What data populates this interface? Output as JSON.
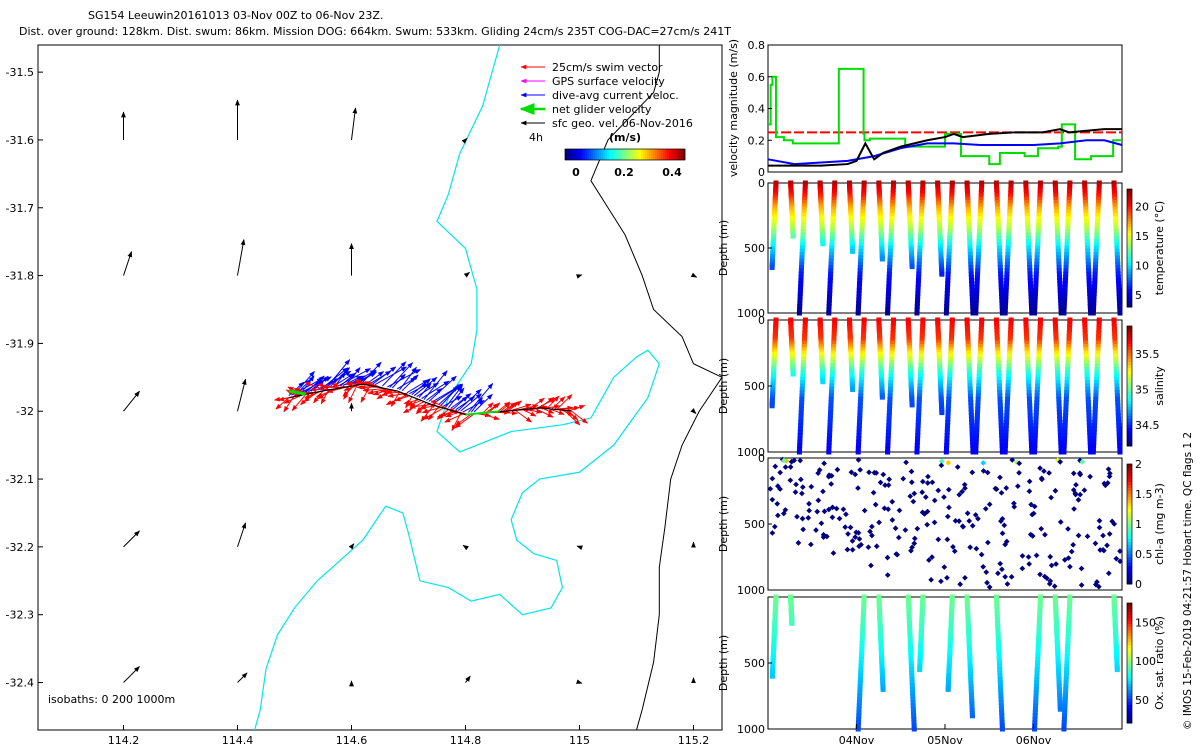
{
  "header": {
    "line1": "SG154 Leeuwin20161013 03-Nov 00Z to 06-Nov 23Z.",
    "line2": "Dist. over ground: 128km. Dist. swum: 86km. Mission DOG: 664km. Swum: 533km. Gliding 24cm/s 235T COG-DAC=27cm/s 241T"
  },
  "side_note": "© IMOS 15-Feb-2019 04:21:57 Hobart time. QC flags 1  2",
  "colors": {
    "swim": "#ff0000",
    "gps": "#ff00ff",
    "dac": "#0000ff",
    "net": "#00dd00",
    "geo": "#000000",
    "isobath0": "#000000",
    "isobath200": "#00e5ee",
    "isobath1000": "#000000"
  },
  "chart_data": [
    {
      "type": "map",
      "xlim": [
        114.05,
        115.25
      ],
      "ylim": [
        -32.47,
        -31.46
      ],
      "x_ticks": [
        114.2,
        114.4,
        114.6,
        114.8,
        115,
        115.2
      ],
      "x_tick_labels": [
        "114.2",
        "114.4",
        "114.6",
        "114.8",
        "115",
        "115.2"
      ],
      "y_ticks": [
        -31.5,
        -31.6,
        -31.7,
        -31.8,
        -31.9,
        -32,
        -32.1,
        -32.2,
        -32.3,
        -32.4
      ],
      "y_tick_labels": [
        "-31.5",
        "-31.6",
        "-31.7",
        "-31.8",
        "-31.9",
        "-32",
        "-32.1",
        "-32.2",
        "-32.3",
        "-32.4"
      ],
      "legend": {
        "position": "top-right",
        "items": [
          {
            "label": "25cm/s swim vector",
            "color": "#ff0000"
          },
          {
            "label": "GPS surface velocity",
            "color": "#ff00ff"
          },
          {
            "label": "dive-avg current veloc.",
            "color": "#0000ff"
          },
          {
            "label": "net glider velocity",
            "color": "#00dd00"
          },
          {
            "label": "sfc geo. vel. 06-Nov-2016",
            "color": "#000000"
          }
        ],
        "extra_label": "4h"
      },
      "colorbar": {
        "title": "(m/s)",
        "range": [
          0,
          0.5
        ],
        "ticks": [
          0,
          0.2,
          0.4
        ],
        "tick_labels": [
          "0",
          "0.2",
          "0.4"
        ]
      },
      "isobaths_label": "isobaths: 0   200  1000m",
      "track": [
        [
          114.49,
          -31.98
        ],
        [
          114.55,
          -31.97
        ],
        [
          114.62,
          -31.96
        ],
        [
          114.68,
          -31.97
        ],
        [
          114.74,
          -31.99
        ],
        [
          114.8,
          -32.005
        ],
        [
          114.87,
          -32.0
        ],
        [
          114.93,
          -31.995
        ],
        [
          114.99,
          -32.0
        ]
      ],
      "geo_vectors": [
        {
          "lon": 114.2,
          "lat": -31.6,
          "u": 0.0,
          "v": 0.35
        },
        {
          "lon": 114.4,
          "lat": -31.6,
          "u": 0.0,
          "v": 0.5
        },
        {
          "lon": 114.6,
          "lat": -31.6,
          "u": 0.05,
          "v": 0.4
        },
        {
          "lon": 114.8,
          "lat": -31.6,
          "u": 0.02,
          "v": 0.02
        },
        {
          "lon": 114.2,
          "lat": -31.8,
          "u": 0.1,
          "v": 0.3
        },
        {
          "lon": 114.4,
          "lat": -31.8,
          "u": 0.08,
          "v": 0.45
        },
        {
          "lon": 114.6,
          "lat": -31.8,
          "u": 0.0,
          "v": 0.4
        },
        {
          "lon": 114.8,
          "lat": -31.8,
          "u": 0.05,
          "v": 0.04
        },
        {
          "lon": 115.0,
          "lat": -31.8,
          "u": 0.03,
          "v": 0.01
        },
        {
          "lon": 115.2,
          "lat": -31.8,
          "u": 0.04,
          "v": -0.02
        },
        {
          "lon": 114.2,
          "lat": -32.0,
          "u": 0.2,
          "v": 0.25
        },
        {
          "lon": 114.4,
          "lat": -32.0,
          "u": 0.1,
          "v": 0.4
        },
        {
          "lon": 114.6,
          "lat": -32.0,
          "u": 0.0,
          "v": 0.1
        },
        {
          "lon": 115.2,
          "lat": -32.0,
          "u": 0.03,
          "v": -0.03
        },
        {
          "lon": 114.2,
          "lat": -32.2,
          "u": 0.2,
          "v": 0.2
        },
        {
          "lon": 114.4,
          "lat": -32.2,
          "u": 0.1,
          "v": 0.3
        },
        {
          "lon": 114.6,
          "lat": -32.2,
          "u": 0.03,
          "v": 0.04
        },
        {
          "lon": 114.8,
          "lat": -32.2,
          "u": -0.03,
          "v": 0.02
        },
        {
          "lon": 115.0,
          "lat": -32.2,
          "u": -0.03,
          "v": 0.01
        },
        {
          "lon": 115.2,
          "lat": -32.2,
          "u": 0.0,
          "v": 0.06
        },
        {
          "lon": 114.2,
          "lat": -32.4,
          "u": 0.2,
          "v": 0.2
        },
        {
          "lon": 114.4,
          "lat": -32.4,
          "u": 0.12,
          "v": 0.12
        },
        {
          "lon": 114.6,
          "lat": -32.4,
          "u": 0.0,
          "v": 0.02
        },
        {
          "lon": 114.8,
          "lat": -32.4,
          "u": 0.06,
          "v": 0.08
        },
        {
          "lon": 115.0,
          "lat": -32.4,
          "u": 0.03,
          "v": -0.01
        },
        {
          "lon": 115.2,
          "lat": -32.4,
          "u": 0.0,
          "v": 0.06
        }
      ],
      "isobath_0m": [
        [
          115.14,
          -31.46
        ],
        [
          115.14,
          -31.5
        ],
        [
          115.13,
          -31.53
        ],
        [
          115.05,
          -31.6
        ],
        [
          115.02,
          -31.66
        ],
        [
          115.05,
          -31.7
        ],
        [
          115.08,
          -31.74
        ],
        [
          115.11,
          -31.8
        ],
        [
          115.13,
          -31.85
        ],
        [
          115.18,
          -31.89
        ],
        [
          115.2,
          -31.93
        ],
        [
          115.25,
          -31.95
        ],
        [
          115.21,
          -32.0
        ],
        [
          115.18,
          -32.05
        ],
        [
          115.16,
          -32.1
        ],
        [
          115.15,
          -32.17
        ],
        [
          115.14,
          -32.23
        ],
        [
          115.14,
          -32.3
        ],
        [
          115.13,
          -32.37
        ],
        [
          115.11,
          -32.44
        ],
        [
          115.1,
          -32.47
        ]
      ]
    },
    {
      "type": "line",
      "ylabel": "velocity magnitude (m/s)",
      "ylim": [
        0,
        0.8
      ],
      "y_ticks": [
        0,
        0.2,
        0.4,
        0.6,
        0.8
      ],
      "y_tick_labels": [
        "0",
        "0.2",
        "0.4",
        "0.6",
        "0.8"
      ],
      "xlim": [
        0,
        4
      ],
      "series": [
        {
          "name": "swim (25cm/s ref)",
          "color": "#ff0000",
          "dashed": true,
          "x": [
            0,
            4
          ],
          "y": [
            0.25,
            0.25
          ]
        },
        {
          "name": "net glider velocity",
          "color": "#00dd00",
          "x": [
            0,
            0.03,
            0.03,
            0.05,
            0.05,
            0.09,
            0.09,
            0.18,
            0.18,
            0.28,
            0.28,
            0.8,
            0.8,
            1.08,
            1.08,
            1.09,
            1.09,
            1.15,
            1.15,
            1.55,
            1.55,
            2.0,
            2.0,
            2.18,
            2.18,
            2.5,
            2.5,
            2.62,
            2.62,
            2.9,
            2.9,
            3.05,
            3.05,
            3.28,
            3.28,
            3.32,
            3.32,
            3.47,
            3.47,
            3.65,
            3.65,
            3.9,
            3.9,
            4.0
          ],
          "y": [
            0.3,
            0.3,
            0.55,
            0.55,
            0.6,
            0.6,
            0.22,
            0.22,
            0.2,
            0.2,
            0.18,
            0.18,
            0.65,
            0.65,
            0.24,
            0.24,
            0.2,
            0.2,
            0.21,
            0.21,
            0.16,
            0.16,
            0.24,
            0.24,
            0.1,
            0.1,
            0.05,
            0.05,
            0.12,
            0.12,
            0.1,
            0.1,
            0.15,
            0.15,
            0.16,
            0.16,
            0.3,
            0.3,
            0.08,
            0.08,
            0.1,
            0.1,
            0.2,
            0.2
          ]
        },
        {
          "name": "dive-avg current veloc.",
          "color": "#0000ff",
          "x": [
            0,
            0.3,
            0.6,
            0.9,
            1.2,
            1.5,
            1.8,
            2.1,
            2.4,
            2.7,
            3.0,
            3.3,
            3.6,
            3.8,
            4.0
          ],
          "y": [
            0.08,
            0.05,
            0.06,
            0.07,
            0.1,
            0.15,
            0.18,
            0.18,
            0.17,
            0.17,
            0.17,
            0.18,
            0.2,
            0.2,
            0.17
          ]
        },
        {
          "name": "sfc geo. vel.",
          "color": "#000000",
          "x": [
            0,
            0.3,
            0.6,
            0.9,
            1.0,
            1.1,
            1.2,
            1.3,
            1.5,
            1.8,
            2.0,
            2.1,
            2.2,
            2.5,
            2.8,
            3.1,
            3.3,
            3.4,
            3.6,
            3.8,
            4.0
          ],
          "y": [
            0.04,
            0.04,
            0.04,
            0.05,
            0.07,
            0.18,
            0.08,
            0.12,
            0.16,
            0.2,
            0.22,
            0.24,
            0.22,
            0.24,
            0.25,
            0.25,
            0.27,
            0.25,
            0.26,
            0.27,
            0.27
          ]
        }
      ]
    },
    {
      "type": "scatter",
      "ylabel": "Depth (m)",
      "clabel": "temperature (°C)",
      "ylim": [
        1000,
        0
      ],
      "y_ticks": [
        0,
        500,
        1000
      ],
      "y_tick_labels": [
        "0",
        "500",
        "1000"
      ],
      "crange": [
        3,
        23
      ],
      "cticks": [
        5,
        10,
        15,
        20
      ],
      "ctick_labels": [
        "5",
        "10",
        "15",
        "20"
      ],
      "profile": [
        [
          0,
          22
        ],
        [
          100,
          20
        ],
        [
          200,
          17
        ],
        [
          350,
          14
        ],
        [
          500,
          10
        ],
        [
          700,
          6
        ],
        [
          1000,
          3.5
        ]
      ],
      "dives": 24
    },
    {
      "type": "scatter",
      "ylabel": "Depth (m)",
      "clabel": "salinity",
      "ylim": [
        1000,
        0
      ],
      "y_ticks": [
        0,
        500,
        1000
      ],
      "y_tick_labels": [
        "0",
        "500",
        "1000"
      ],
      "crange": [
        34.2,
        35.9
      ],
      "cticks": [
        34.5,
        35,
        35.5
      ],
      "ctick_labels": [
        "34.5",
        "35",
        "35.5"
      ],
      "profile": [
        [
          0,
          35.7
        ],
        [
          150,
          35.6
        ],
        [
          250,
          35.3
        ],
        [
          400,
          34.9
        ],
        [
          600,
          34.55
        ],
        [
          1000,
          34.4
        ]
      ],
      "dives": 24
    },
    {
      "type": "scatter",
      "ylabel": "Depth (m)",
      "clabel": "chl-a (mg m-3)",
      "ylim": [
        1000,
        0
      ],
      "y_ticks": [
        0,
        500,
        1000
      ],
      "y_tick_labels": [
        "0",
        "500",
        "1000"
      ],
      "crange": [
        0,
        2
      ],
      "cticks": [
        0,
        0.5,
        1,
        1.5,
        2
      ],
      "ctick_labels": [
        "0",
        "0.5",
        "1",
        "1.5",
        "2"
      ],
      "value": 0.05
    },
    {
      "type": "scatter",
      "ylabel": "Depth (m)",
      "clabel": "Ox. sat. ratio (%)",
      "ylim": [
        1000,
        0
      ],
      "y_ticks": [
        500,
        1000
      ],
      "y_tick_labels": [
        "500",
        "1000"
      ],
      "crange": [
        20,
        175
      ],
      "cticks": [
        50,
        100,
        150
      ],
      "ctick_labels": [
        "50",
        "100",
        "150"
      ],
      "profile": [
        [
          0,
          95
        ],
        [
          300,
          85
        ],
        [
          600,
          70
        ],
        [
          1000,
          50
        ]
      ],
      "x_ticks": [
        1,
        2,
        3
      ],
      "x_tick_labels": [
        "04Nov",
        "05Nov",
        "06Nov"
      ],
      "xlim": [
        0,
        4
      ]
    }
  ]
}
